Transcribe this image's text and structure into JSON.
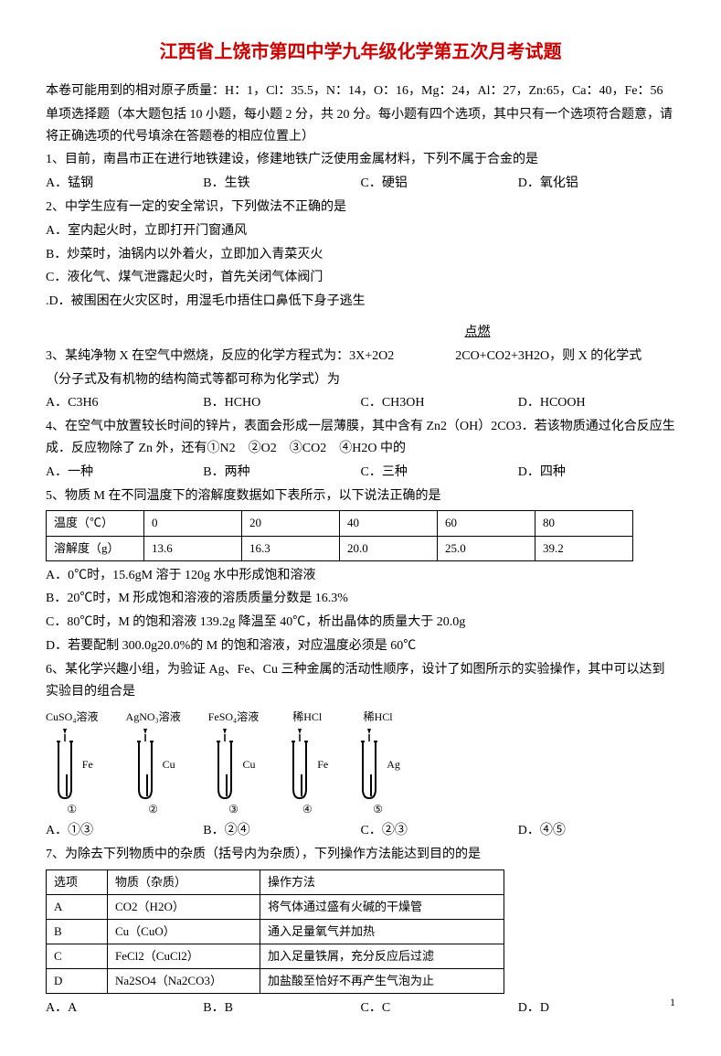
{
  "title": "江西省上饶市第四中学九年级化学第五次月考试题",
  "atomic_masses": "本卷可能用到的相对原子质量：H：1，Cl：35.5，N：14，O：16，Mg：24，Al：27，Zn:65，Ca：40，Fe：56",
  "section_instr": "单项选择题（本大题包括 10 小题，每小题 2 分，共 20 分。每小题有四个选项，其中只有一个选项符合题意，请将正确选项的代号填涂在答题卷的相应位置上）",
  "q1": {
    "stem": "1、目前，南昌市正在进行地铁建设，修建地铁广泛使用金属材料，下列不属于合金的是",
    "a": "A．锰钢",
    "b": "B．生铁",
    "c": "C．硬铝",
    "d": "D．氧化铝"
  },
  "q2": {
    "stem": "2、中学生应有一定的安全常识，下列做法不正确的是",
    "a": "A．室内起火时，立即打开门窗通风",
    "b": "B．炒菜时，油锅内以外着火，立即加入青菜灭火",
    "c": "C．液化气、煤气泄露起火时，首先关闭气体阀门",
    "d": ".D．被围困在火灾区时，用湿毛巾捂住口鼻低下身子逃生"
  },
  "q3": {
    "combustion_label": "点燃",
    "stem_before": "3、某纯净物 X 在空气中燃烧，反应的化学方程式为：3X+2O2",
    "stem_after": "2CO+CO2+3H2O，则 X 的化学式",
    "stem_line2": "（分子式及有机物的结构简式等都可称为化学式）为",
    "a": "A．C3H6",
    "b": "B．HCHO",
    "c": "C．CH3OH",
    "d": "D．HCOOH"
  },
  "q4": {
    "stem": "4、在空气中放置较长时间的锌片，表面会形成一层薄膜，其中含有 Zn2（OH）2CO3．若该物质通过化合反应生成．反应物除了 Zn 外，还有①N2　②O2　③CO2　④H2O 中的",
    "a": "A．一种",
    "b": "B．两种",
    "c": "C．三种",
    "d": "D．四种"
  },
  "q5": {
    "stem": "5、物质 M 在不同温度下的溶解度数据如下表所示，以下说法正确的是",
    "headers": [
      "温度（℃）",
      "0",
      "20",
      "40",
      "60",
      "80"
    ],
    "row2": [
      "溶解度（g）",
      "13.6",
      "16.3",
      "20.0",
      "25.0",
      "39.2"
    ],
    "a": "A．0℃时，15.6gM 溶于 120g 水中形成饱和溶液",
    "b": "B．20℃时，M 形成饱和溶液的溶质质量分数是 16.3%",
    "c": "C．80℃时，M 的饱和溶液 139.2g 降温至 40℃，析出晶体的质量大于 20.0g",
    "d": "D．若要配制 300.0g20.0%的 M 的饱和溶液，对应温度必须是 60℃"
  },
  "q6": {
    "stem": "6、某化学兴趣小组，为验证 Ag、Fe、Cu 三种金属的活动性顺序，设计了如图所示的实验操作，其中可以达到实验目的组合是",
    "tubes": [
      {
        "top": "CuSO₄溶液",
        "metal": "Fe",
        "num": "①"
      },
      {
        "top": "AgNO₃溶液",
        "metal": "Cu",
        "num": "②"
      },
      {
        "top": "FeSO₄溶液",
        "metal": "Cu",
        "num": "③"
      },
      {
        "top": "稀HCl",
        "metal": "Fe",
        "num": "④"
      },
      {
        "top": "稀HCl",
        "metal": "Ag",
        "num": "⑤"
      }
    ],
    "a": "A．①③",
    "b": "B．②④",
    "c": "C．②③",
    "d": "D．④⑤"
  },
  "q7": {
    "stem": "7、为除去下列物质中的杂质（括号内为杂质），下列操作方法能达到目的的是",
    "headers": [
      "选项",
      "物质（杂质）",
      "操作方法"
    ],
    "rows": [
      [
        "A",
        "CO2（H2O）",
        "将气体通过盛有火碱的干燥管"
      ],
      [
        "B",
        "Cu（CuO）",
        "通入足量氧气并加热"
      ],
      [
        "C",
        "FeCl2（CuCl2）",
        "加入足量铁屑，充分反应后过滤"
      ],
      [
        "D",
        "Na2SO4（Na2CO3）",
        "加盐酸至恰好不再产生气泡为止"
      ]
    ],
    "a": "A．A",
    "b": "B．B",
    "c": "C．C",
    "d": "D．D"
  },
  "page_num": "1"
}
